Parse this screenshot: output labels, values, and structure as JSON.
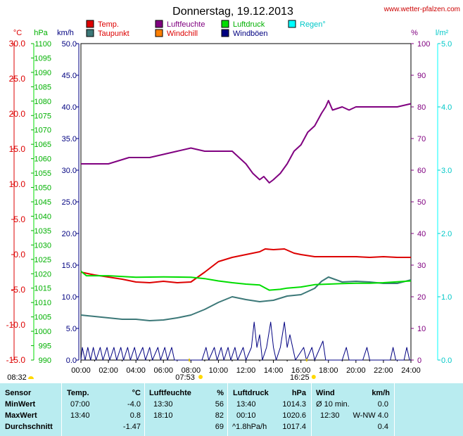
{
  "title": "Donnerstag, 19.12.2013",
  "source": "www.wetter-pfalzen.com",
  "colors": {
    "temp": "#dd0000",
    "taupunkt": "#3c7878",
    "luftfeuchte": "#800080",
    "windchill": "#ff8000",
    "luftdruck": "#00dd00",
    "windboeen": "#000080",
    "regen": "#00ffff"
  },
  "legend": [
    {
      "key": "temp",
      "label": "Temp.",
      "color": "#dd0000",
      "text_color": "#dd0000"
    },
    {
      "key": "luftfeuchte",
      "label": "Luftfeuchte",
      "color": "#800080",
      "text_color": "#800080"
    },
    {
      "key": "luftdruck",
      "label": "Luftdruck",
      "color": "#00dd00",
      "text_color": "#00b000"
    },
    {
      "key": "regen",
      "label": "Regen°",
      "color": "#00ffff",
      "text_color": "#00c8c8"
    },
    {
      "key": "taupunkt",
      "label": "Taupunkt",
      "color": "#3c7878",
      "text_color": "#dd0000"
    },
    {
      "key": "windchill",
      "label": "Windchill",
      "color": "#ff8000",
      "text_color": "#dd0000"
    },
    {
      "key": "windboeen",
      "label": "Windböen",
      "color": "#000080",
      "text_color": "#000080"
    }
  ],
  "axes": {
    "temp_unit": "°C",
    "press_unit": "hPa",
    "wind_unit": "km/h",
    "hum_unit": "%",
    "rain_unit": "l/m²",
    "temp_ticks": [
      "30.0",
      "25.0",
      "20.0",
      "15.0",
      "10.0",
      "5.0",
      "0.0",
      "-5.0",
      "-10.0",
      "-15.0"
    ],
    "press_ticks": [
      "1100",
      "1095",
      "1090",
      "1085",
      "1080",
      "1075",
      "1070",
      "1065",
      "1060",
      "1055",
      "1050",
      "1045",
      "1040",
      "1035",
      "1030",
      "1025",
      "1020",
      "1015",
      "1010",
      "1005",
      "1000",
      "995",
      "990"
    ],
    "wind_ticks": [
      "50.0",
      "45.0",
      "40.0",
      "35.0",
      "30.0",
      "25.0",
      "20.0",
      "15.0",
      "10.0",
      "5.0",
      "0.0"
    ],
    "hum_ticks": [
      "100",
      "90",
      "80",
      "70",
      "60",
      "50",
      "40",
      "30",
      "20",
      "10",
      "0"
    ],
    "rain_ticks": [
      "5.0",
      "4.0",
      "3.0",
      "2.0",
      "1.0",
      "0.0"
    ],
    "x_ticks": [
      "00:00",
      "02:00",
      "04:00",
      "06:00",
      "08:00",
      "10:00",
      "12:00",
      "14:00",
      "16:00",
      "18:00",
      "20:00",
      "22:00",
      "24:00"
    ]
  },
  "sun": {
    "sunrise": "07:53",
    "sunset": "16:25",
    "moonrise": "08:32"
  },
  "chart_data": {
    "type": "line",
    "title": "Donnerstag, 19.12.2013",
    "x_unit": "hours",
    "x_range": [
      0,
      24
    ],
    "grid": false,
    "legend_position": "top",
    "y_axes": {
      "temp": {
        "unit": "°C",
        "range": [
          -15,
          30
        ]
      },
      "luftdruck": {
        "unit": "hPa",
        "range": [
          990,
          1100
        ]
      },
      "wind": {
        "unit": "km/h",
        "range": [
          0,
          50
        ]
      },
      "luftfeuchte": {
        "unit": "%",
        "range": [
          0,
          100
        ]
      },
      "regen": {
        "unit": "l/m²",
        "range": [
          0,
          5
        ]
      }
    },
    "series": [
      {
        "name": "Luftfeuchte",
        "axis": "luftfeuchte",
        "color": "#800080",
        "points": [
          [
            0,
            62
          ],
          [
            2,
            62
          ],
          [
            3.5,
            64
          ],
          [
            5,
            64
          ],
          [
            6,
            65
          ],
          [
            7,
            66
          ],
          [
            8,
            67
          ],
          [
            9,
            66
          ],
          [
            10,
            66
          ],
          [
            11,
            66
          ],
          [
            11.5,
            64
          ],
          [
            12,
            62
          ],
          [
            12.5,
            59
          ],
          [
            13,
            57
          ],
          [
            13.3,
            58
          ],
          [
            13.7,
            56
          ],
          [
            14,
            57
          ],
          [
            14.5,
            59
          ],
          [
            15,
            62
          ],
          [
            15.5,
            66
          ],
          [
            16,
            68
          ],
          [
            16.5,
            72
          ],
          [
            17,
            74
          ],
          [
            17.5,
            78
          ],
          [
            17.8,
            80
          ],
          [
            18,
            82
          ],
          [
            18.3,
            79
          ],
          [
            19,
            80
          ],
          [
            19.5,
            79
          ],
          [
            20,
            80
          ],
          [
            21,
            80
          ],
          [
            22,
            80
          ],
          [
            23,
            80
          ],
          [
            24,
            81
          ]
        ]
      },
      {
        "name": "Temp.",
        "axis": "temp",
        "color": "#dd0000",
        "points": [
          [
            0,
            -2.5
          ],
          [
            1,
            -2.9
          ],
          [
            2,
            -3.2
          ],
          [
            3,
            -3.5
          ],
          [
            4,
            -3.9
          ],
          [
            5,
            -4.0
          ],
          [
            6,
            -3.8
          ],
          [
            7,
            -4.0
          ],
          [
            8,
            -3.9
          ],
          [
            9,
            -2.5
          ],
          [
            10,
            -1.0
          ],
          [
            11,
            -0.4
          ],
          [
            12,
            0.0
          ],
          [
            13,
            0.4
          ],
          [
            13.4,
            0.8
          ],
          [
            14,
            0.7
          ],
          [
            14.8,
            0.8
          ],
          [
            15.5,
            0.2
          ],
          [
            16,
            0.0
          ],
          [
            17,
            -0.3
          ],
          [
            18,
            -0.3
          ],
          [
            19,
            -0.3
          ],
          [
            20,
            -0.3
          ],
          [
            21,
            -0.4
          ],
          [
            22,
            -0.3
          ],
          [
            23,
            -0.4
          ],
          [
            24,
            -0.4
          ]
        ]
      },
      {
        "name": "Taupunkt",
        "axis": "temp",
        "color": "#3c7878",
        "points": [
          [
            0,
            -8.6
          ],
          [
            1,
            -8.8
          ],
          [
            2,
            -9.0
          ],
          [
            3,
            -9.2
          ],
          [
            4,
            -9.2
          ],
          [
            5,
            -9.4
          ],
          [
            6,
            -9.3
          ],
          [
            7,
            -9.0
          ],
          [
            8,
            -8.6
          ],
          [
            9,
            -7.8
          ],
          [
            10,
            -6.8
          ],
          [
            11,
            -6.0
          ],
          [
            12,
            -6.4
          ],
          [
            13,
            -6.7
          ],
          [
            14,
            -6.5
          ],
          [
            15,
            -5.9
          ],
          [
            16,
            -5.7
          ],
          [
            17,
            -4.8
          ],
          [
            17.5,
            -3.8
          ],
          [
            18,
            -3.2
          ],
          [
            19,
            -3.9
          ],
          [
            20,
            -3.8
          ],
          [
            21,
            -3.9
          ],
          [
            22,
            -4.1
          ],
          [
            23,
            -4.1
          ],
          [
            24,
            -3.6
          ]
        ]
      },
      {
        "name": "Luftdruck",
        "axis": "luftdruck",
        "color": "#00dd00",
        "points": [
          [
            0,
            1020.9
          ],
          [
            0.4,
            1019.3
          ],
          [
            2,
            1019.3
          ],
          [
            4,
            1018.8
          ],
          [
            6,
            1018.9
          ],
          [
            8,
            1018.8
          ],
          [
            9,
            1018.3
          ],
          [
            10,
            1017.5
          ],
          [
            11,
            1016.9
          ],
          [
            12,
            1016.4
          ],
          [
            13,
            1016.1
          ],
          [
            13.7,
            1014.3
          ],
          [
            14.5,
            1014.6
          ],
          [
            15,
            1015.0
          ],
          [
            16,
            1015.4
          ],
          [
            17,
            1016.2
          ],
          [
            18,
            1016.4
          ],
          [
            19,
            1016.6
          ],
          [
            20,
            1016.7
          ],
          [
            21,
            1016.7
          ],
          [
            22,
            1016.9
          ],
          [
            23,
            1017.2
          ],
          [
            24,
            1017.5
          ]
        ]
      },
      {
        "name": "Windböen",
        "axis": "wind",
        "color": "#000080",
        "points": [
          [
            0,
            0
          ],
          [
            0.1,
            2
          ],
          [
            0.3,
            0
          ],
          [
            0.5,
            2
          ],
          [
            0.7,
            0
          ],
          [
            0.9,
            2
          ],
          [
            1.1,
            0
          ],
          [
            1.4,
            2
          ],
          [
            1.6,
            0
          ],
          [
            1.9,
            2
          ],
          [
            2.1,
            0
          ],
          [
            2.4,
            2
          ],
          [
            2.6,
            0
          ],
          [
            2.9,
            2
          ],
          [
            3.1,
            0
          ],
          [
            3.4,
            2
          ],
          [
            3.6,
            0
          ],
          [
            3.9,
            2
          ],
          [
            4.1,
            0
          ],
          [
            4.5,
            2
          ],
          [
            4.7,
            0
          ],
          [
            5.0,
            2
          ],
          [
            5.2,
            0
          ],
          [
            5.6,
            2
          ],
          [
            5.8,
            0
          ],
          [
            6.1,
            2
          ],
          [
            6.3,
            0
          ],
          [
            6.6,
            2
          ],
          [
            6.8,
            0
          ],
          [
            7.5,
            0
          ],
          [
            8.8,
            0
          ],
          [
            9.1,
            2
          ],
          [
            9.3,
            0
          ],
          [
            9.7,
            2
          ],
          [
            9.9,
            0
          ],
          [
            10.2,
            2
          ],
          [
            10.4,
            0
          ],
          [
            10.7,
            2
          ],
          [
            10.9,
            0
          ],
          [
            11.2,
            2
          ],
          [
            11.4,
            0
          ],
          [
            11.8,
            2
          ],
          [
            12.0,
            0
          ],
          [
            12.4,
            2
          ],
          [
            12.6,
            6
          ],
          [
            12.8,
            2
          ],
          [
            13.0,
            4
          ],
          [
            13.2,
            0
          ],
          [
            13.5,
            2
          ],
          [
            13.8,
            6
          ],
          [
            14.0,
            2
          ],
          [
            14.2,
            0
          ],
          [
            14.5,
            2
          ],
          [
            14.8,
            6
          ],
          [
            15.0,
            2
          ],
          [
            15.2,
            4
          ],
          [
            15.4,
            2
          ],
          [
            15.6,
            0
          ],
          [
            16.2,
            2
          ],
          [
            16.4,
            0
          ],
          [
            16.8,
            2
          ],
          [
            17.0,
            0
          ],
          [
            17.6,
            3
          ],
          [
            17.8,
            0
          ],
          [
            19.0,
            0
          ],
          [
            19.3,
            2
          ],
          [
            19.5,
            0
          ],
          [
            20.5,
            0
          ],
          [
            20.8,
            2
          ],
          [
            21.0,
            0
          ],
          [
            22.5,
            0
          ],
          [
            22.7,
            2
          ],
          [
            22.9,
            0
          ],
          [
            23.5,
            0
          ],
          [
            23.7,
            2
          ],
          [
            23.9,
            0
          ],
          [
            24,
            0
          ]
        ]
      }
    ]
  },
  "stats": {
    "headers": {
      "sensor": "Sensor",
      "temp": "Temp.",
      "temp_unit": "°C",
      "feuchte": "Luftfeuchte",
      "feuchte_unit": "%",
      "druck": "Luftdruck",
      "druck_unit": "hPa",
      "wind": "Wind",
      "wind_unit": "km/h"
    },
    "rows": [
      {
        "label": "MinWert",
        "temp_time": "07:00",
        "temp_val": "-4.0",
        "hum_time": "13:30",
        "hum_val": "56",
        "press_time": "13:40",
        "press_val": "1014.3",
        "wind_time": "Ø 10 min.",
        "wind_val": "0.0"
      },
      {
        "label": "MaxWert",
        "temp_time": "13:40",
        "temp_val": "0.8",
        "hum_time": "18:10",
        "hum_val": "82",
        "press_time": "00:10",
        "press_val": "1020.6",
        "wind_time": "12:30",
        "wind_val": "W-NW 4.0"
      },
      {
        "label": "Durchschnitt",
        "temp_time": "",
        "temp_val": "-1.47",
        "hum_time": "",
        "hum_val": "69",
        "press_time": "^1.8hPa/h",
        "press_val": "1017.4",
        "wind_time": "",
        "wind_val": "0.4"
      }
    ]
  }
}
